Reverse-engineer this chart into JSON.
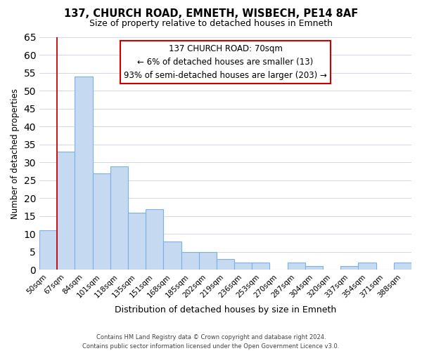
{
  "title": "137, CHURCH ROAD, EMNETH, WISBECH, PE14 8AF",
  "subtitle": "Size of property relative to detached houses in Emneth",
  "xlabel": "Distribution of detached houses by size in Emneth",
  "ylabel": "Number of detached properties",
  "bar_labels": [
    "50sqm",
    "67sqm",
    "84sqm",
    "101sqm",
    "118sqm",
    "135sqm",
    "151sqm",
    "168sqm",
    "185sqm",
    "202sqm",
    "219sqm",
    "236sqm",
    "253sqm",
    "270sqm",
    "287sqm",
    "304sqm",
    "320sqm",
    "337sqm",
    "354sqm",
    "371sqm",
    "388sqm"
  ],
  "bar_values": [
    11,
    33,
    54,
    27,
    29,
    16,
    17,
    8,
    5,
    5,
    3,
    2,
    2,
    0,
    2,
    1,
    0,
    1,
    2,
    0,
    2
  ],
  "bar_color": "#c5d9f1",
  "bar_edge_color": "#7cb0e8",
  "highlight_line_color": "#cc0000",
  "ylim": [
    0,
    65
  ],
  "yticks": [
    0,
    5,
    10,
    15,
    20,
    25,
    30,
    35,
    40,
    45,
    50,
    55,
    60,
    65
  ],
  "annotation_title": "137 CHURCH ROAD: 70sqm",
  "annotation_line1": "← 6% of detached houses are smaller (13)",
  "annotation_line2": "93% of semi-detached houses are larger (203) →",
  "annotation_box_color": "#ffffff",
  "annotation_box_edge": "#cc0000",
  "footer_line1": "Contains HM Land Registry data © Crown copyright and database right 2024.",
  "footer_line2": "Contains public sector information licensed under the Open Government Licence v3.0.",
  "background_color": "#ffffff",
  "grid_color": "#d0d8e8"
}
